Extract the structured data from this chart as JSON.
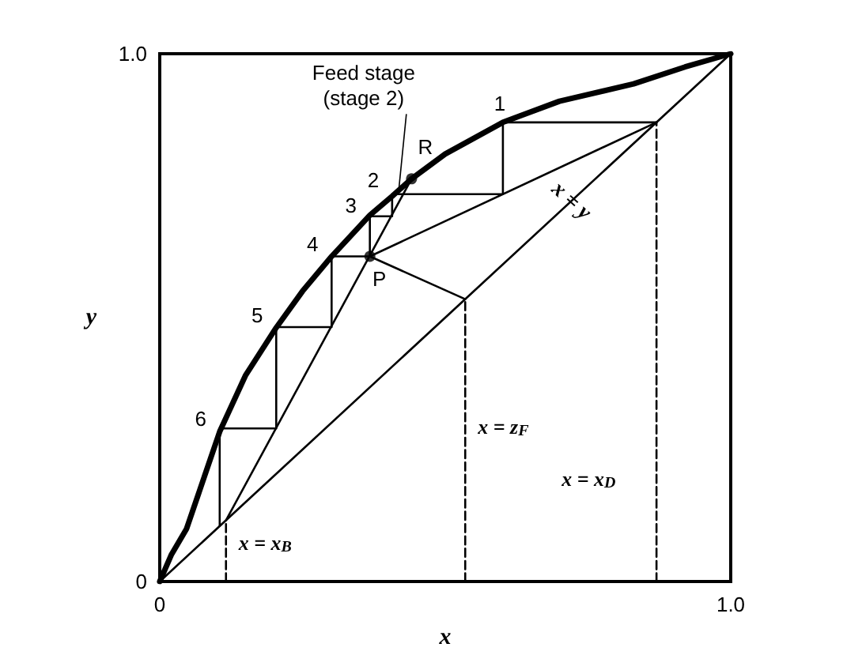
{
  "chart_data": {
    "type": "line",
    "xlabel": "x",
    "ylabel": "y",
    "xlim": [
      0,
      1
    ],
    "ylim": [
      0,
      1
    ],
    "xticks": [
      0,
      {
        "value": 1,
        "label": "1.0"
      }
    ],
    "yticks": [
      0,
      {
        "value": 1,
        "label": "1.0"
      }
    ],
    "grid": false,
    "marker": "none",
    "line_style": "solid",
    "series": [
      {
        "color": "#000000",
        "x": [
          0,
          0.02,
          0.047,
          0.105,
          0.15,
          0.204,
          0.25,
          0.301,
          0.368,
          0.407,
          0.441,
          0.5,
          0.601,
          0.7,
          0.83,
          0.92,
          1
        ],
        "values": [
          0,
          0.05,
          0.1,
          0.284,
          0.39,
          0.481,
          0.55,
          0.616,
          0.694,
          0.73,
          0.763,
          0.81,
          0.87,
          0.91,
          0.943,
          0.975,
          1
        ]
      },
      {
        "color": "#000000",
        "x": [
          0,
          1
        ],
        "values": [
          0,
          1
        ]
      },
      {
        "color": "#000000",
        "x": [
          0.87,
          0.368
        ],
        "values": [
          0.87,
          0.616
        ]
      },
      {
        "color": "#000000",
        "x": [
          0.116,
          0.441
        ],
        "values": [
          0.116,
          0.763
        ]
      },
      {
        "color": "#000000",
        "x": [
          0.535,
          0.368
        ],
        "values": [
          0.535,
          0.616
        ]
      },
      {
        "color": "#000000",
        "x": [
          0.87,
          0.601,
          0.601,
          0.407,
          0.407,
          0.368,
          0.368,
          0.301,
          0.301,
          0.204,
          0.204,
          0.105,
          0.105
        ],
        "values": [
          0.87,
          0.87,
          0.734,
          0.734,
          0.692,
          0.692,
          0.616,
          0.616,
          0.482,
          0.482,
          0.29,
          0.29,
          0.105
        ]
      },
      {
        "color": "#000000",
        "line_style": "dashed",
        "x": [
          0.116,
          0.116
        ],
        "values": [
          0,
          0.116
        ]
      },
      {
        "color": "#000000",
        "line_style": "dashed",
        "x": [
          0.535,
          0.535
        ],
        "values": [
          0,
          0.535
        ]
      },
      {
        "color": "#000000",
        "line_style": "dashed",
        "x": [
          0.87,
          0.87
        ],
        "values": [
          0,
          0.87
        ]
      },
      {
        "type": "scatter",
        "marker": "circle",
        "color": "#000000",
        "x": [
          0.368,
          0.441
        ],
        "values": [
          0.616,
          0.763
        ]
      }
    ],
    "annotations": [
      {
        "text": "1",
        "x": 0.601,
        "y": 0.87
      },
      {
        "text": "2",
        "x": 0.407,
        "y": 0.73
      },
      {
        "text": "3",
        "x": 0.368,
        "y": 0.694
      },
      {
        "text": "4",
        "x": 0.301,
        "y": 0.616
      },
      {
        "text": "5",
        "x": 0.204,
        "y": 0.481
      },
      {
        "text": "6",
        "x": 0.105,
        "y": 0.284
      },
      {
        "text": "R",
        "x": 0.441,
        "y": 0.763
      },
      {
        "text": "P",
        "x": 0.368,
        "y": 0.616
      },
      {
        "text": "Feed stage\n(stage 2)",
        "x": 0.407,
        "y": 0.73
      },
      {
        "text": "x = y",
        "x": 0.72,
        "y": 0.72
      },
      {
        "text": "x = x$_{B}$",
        "x": 0.116,
        "y": 0.08
      },
      {
        "text": "x = z$_{F}$",
        "x": 0.535,
        "y": 0.3
      },
      {
        "text": "x = x$_{D}$",
        "x": 0.87,
        "y": 0.2
      }
    ]
  }
}
